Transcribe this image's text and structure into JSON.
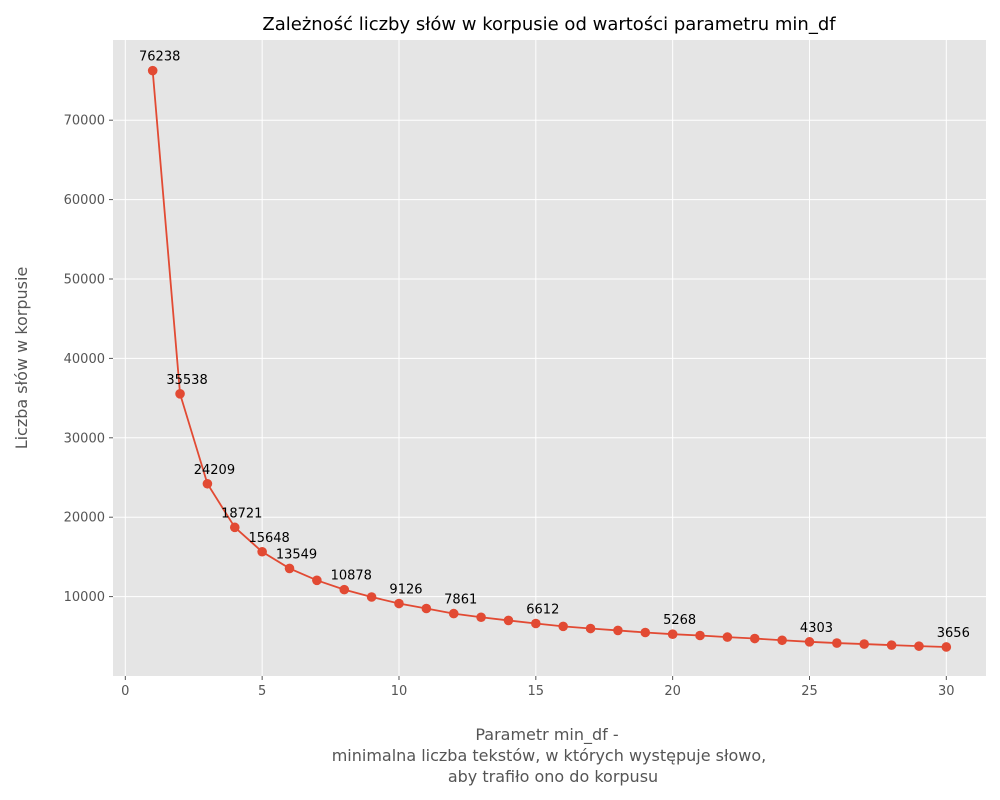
{
  "chart_data": {
    "type": "line",
    "title": "Zależność liczby słów w korpusie od wartości parametru min_df",
    "xlabel_lines": [
      "Parametr min_df -",
      "minimalna liczba tekstów, w których występuje słowo,",
      "aby trafiło ono do korpusu"
    ],
    "ylabel": "Liczba słów w korpusie",
    "x": [
      1,
      2,
      3,
      4,
      5,
      6,
      7,
      8,
      9,
      10,
      11,
      12,
      13,
      14,
      15,
      16,
      17,
      18,
      19,
      20,
      21,
      22,
      23,
      24,
      25,
      26,
      27,
      28,
      29,
      30
    ],
    "y": [
      76238,
      35538,
      24209,
      18721,
      15648,
      13549,
      12050,
      10878,
      9950,
      9126,
      8500,
      7861,
      7400,
      7000,
      6612,
      6250,
      5980,
      5740,
      5480,
      5268,
      5100,
      4900,
      4720,
      4500,
      4303,
      4150,
      4020,
      3890,
      3760,
      3656
    ],
    "labeled_points": [
      1,
      2,
      3,
      4,
      5,
      6,
      8,
      10,
      12,
      15,
      20,
      25,
      30
    ],
    "xlim": [
      -0.45,
      31.45
    ],
    "ylim": [
      0,
      80100
    ],
    "xticks": [
      0,
      5,
      10,
      15,
      20,
      25,
      30
    ],
    "yticks": [
      10000,
      20000,
      30000,
      40000,
      50000,
      60000,
      70000
    ],
    "grid": true,
    "line_color": "#E24A33",
    "background_color": "#E5E5E5",
    "grid_color": "#FFFFFF"
  }
}
